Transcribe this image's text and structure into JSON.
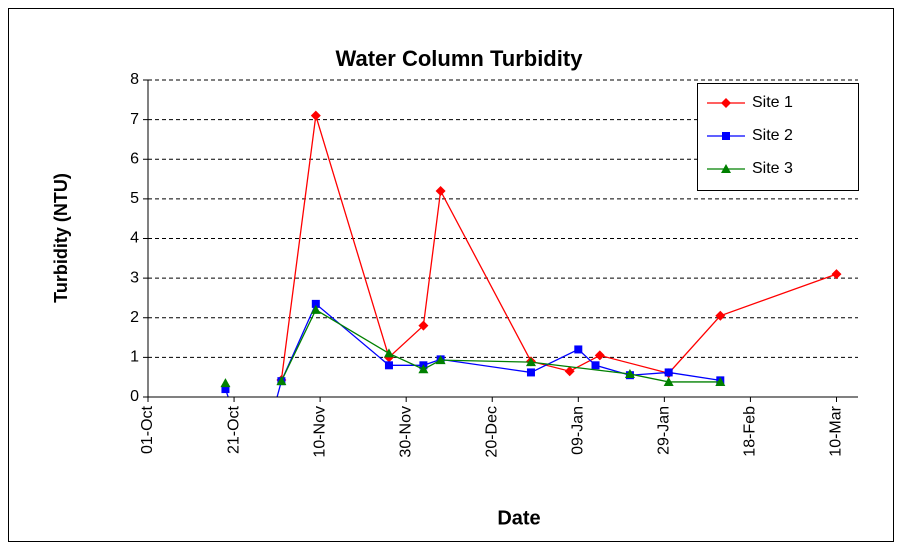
{
  "chart_data": {
    "type": "line",
    "title": "Water Column Turbidity",
    "x_label": "Date",
    "y_label": "Turbidity (NTU)",
    "xlim": [
      "01-Oct",
      "15-Mar"
    ],
    "xticks": [
      "01-Oct",
      "21-Oct",
      "10-Nov",
      "30-Nov",
      "20-Dec",
      "09-Jan",
      "29-Jan",
      "18-Feb",
      "10-Mar"
    ],
    "ylim": [
      0,
      8
    ],
    "yticks": [
      0,
      1,
      2,
      3,
      4,
      5,
      6,
      7,
      8
    ],
    "grid": true,
    "legend": "upper right",
    "series": [
      {
        "name": "Site 1",
        "color": "#ff0000",
        "marker": "diamond",
        "x": [
          "01-Nov",
          "09-Nov",
          "26-Nov",
          "04-Dec",
          "08-Dec",
          "29-Dec",
          "07-Jan",
          "14-Jan",
          "30-Jan",
          "11-Feb",
          "10-Mar"
        ],
        "values": [
          0.43,
          7.1,
          1.0,
          1.8,
          5.2,
          0.9,
          0.65,
          1.05,
          0.6,
          2.05,
          3.1
        ]
      },
      {
        "name": "Site 2",
        "color": "#0000ff",
        "marker": "square",
        "x": [
          "19-Oct",
          "26-Oct",
          "01-Nov",
          "09-Nov",
          "26-Nov",
          "04-Dec",
          "08-Dec",
          "29-Dec",
          "09-Jan",
          "13-Jan",
          "21-Jan",
          "30-Jan",
          "11-Feb"
        ],
        "values": [
          0.2,
          -2,
          0.4,
          2.35,
          0.8,
          0.8,
          0.95,
          0.62,
          1.2,
          0.8,
          0.55,
          0.62,
          0.42
        ]
      },
      {
        "name": "Site 3",
        "color": "#008000",
        "marker": "triangle",
        "x": [
          "19-Oct",
          "26-Oct",
          "01-Nov",
          "09-Nov",
          "26-Nov",
          "04-Dec",
          "08-Dec",
          "29-Dec",
          "21-Jan",
          "30-Jan",
          "11-Feb"
        ],
        "values": [
          0.35,
          null,
          0.4,
          2.2,
          1.1,
          0.7,
          0.93,
          0.88,
          0.58,
          0.38,
          0.38
        ]
      }
    ]
  }
}
